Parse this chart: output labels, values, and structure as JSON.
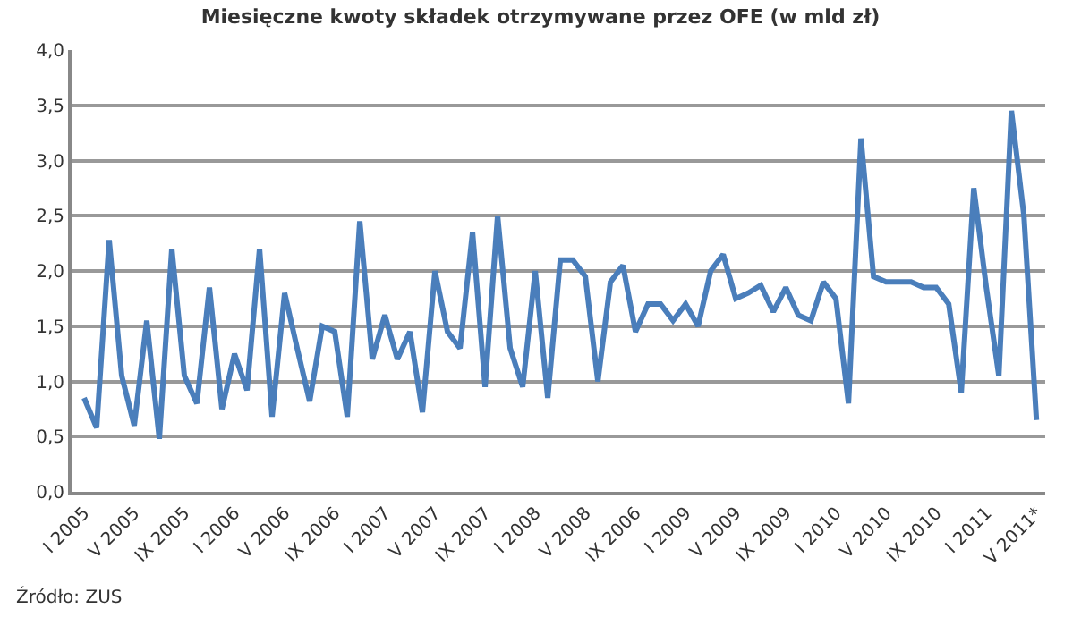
{
  "chart_data": {
    "type": "line",
    "title": "Miesięczne kwoty składek otrzymywane przez OFE (w mld zł)",
    "categories": [
      "I 2005",
      null,
      null,
      null,
      "V 2005",
      null,
      null,
      null,
      "IX 2005",
      null,
      null,
      null,
      "I 2006",
      null,
      null,
      null,
      "V 2006",
      null,
      null,
      null,
      "IX 2006",
      null,
      null,
      null,
      "I 2007",
      null,
      null,
      null,
      "V 2007",
      null,
      null,
      null,
      "IX 2007",
      null,
      null,
      null,
      "I 2008",
      null,
      null,
      null,
      "V 2008",
      null,
      null,
      null,
      "IX 2006",
      null,
      null,
      null,
      "I 2009",
      null,
      null,
      null,
      "V 2009",
      null,
      null,
      null,
      "IX 2009",
      null,
      null,
      null,
      "I 2010",
      null,
      null,
      null,
      "V 2010",
      null,
      null,
      null,
      "IX 2010",
      null,
      null,
      null,
      "I 2011",
      null,
      null,
      null,
      "V 2011*"
    ],
    "series": [
      {
        "color": "#4a7ebb",
        "values": [
          0.85,
          0.58,
          2.28,
          1.05,
          0.6,
          1.55,
          0.48,
          2.2,
          1.05,
          0.8,
          1.85,
          0.75,
          1.25,
          0.92,
          2.2,
          0.68,
          1.8,
          1.3,
          0.82,
          1.5,
          1.45,
          0.68,
          2.45,
          1.2,
          1.6,
          1.2,
          1.45,
          0.72,
          2.0,
          1.45,
          1.3,
          2.35,
          0.95,
          2.5,
          1.3,
          0.95,
          2.0,
          0.85,
          2.1,
          2.1,
          1.95,
          1.0,
          1.9,
          2.05,
          1.45,
          1.7,
          1.7,
          1.55,
          1.7,
          1.5,
          2.0,
          2.15,
          1.75,
          1.8,
          1.87,
          1.63,
          1.85,
          1.6,
          1.55,
          1.9,
          1.75,
          0.8,
          3.2,
          1.95,
          1.9,
          1.9,
          1.9,
          1.85,
          1.85,
          1.7,
          0.9,
          2.75,
          1.85,
          1.05,
          3.45,
          2.5,
          0.65
        ]
      }
    ],
    "ylim": [
      0,
      4
    ],
    "yticks": [
      {
        "value": 0,
        "label": "0,0"
      },
      {
        "value": 0.5,
        "label": "0,5"
      },
      {
        "value": 1,
        "label": "1,0"
      },
      {
        "value": 1.5,
        "label": "1,5"
      },
      {
        "value": 2,
        "label": "2,0"
      },
      {
        "value": 2.5,
        "label": "2,5"
      },
      {
        "value": 3,
        "label": "3,0"
      },
      {
        "value": 3.5,
        "label": "3,5"
      },
      {
        "value": 4,
        "label": "4,0"
      }
    ],
    "grid": "y",
    "marker": "none",
    "line_style": "solid",
    "annotations": [
      "Źródło: ZUS"
    ]
  }
}
